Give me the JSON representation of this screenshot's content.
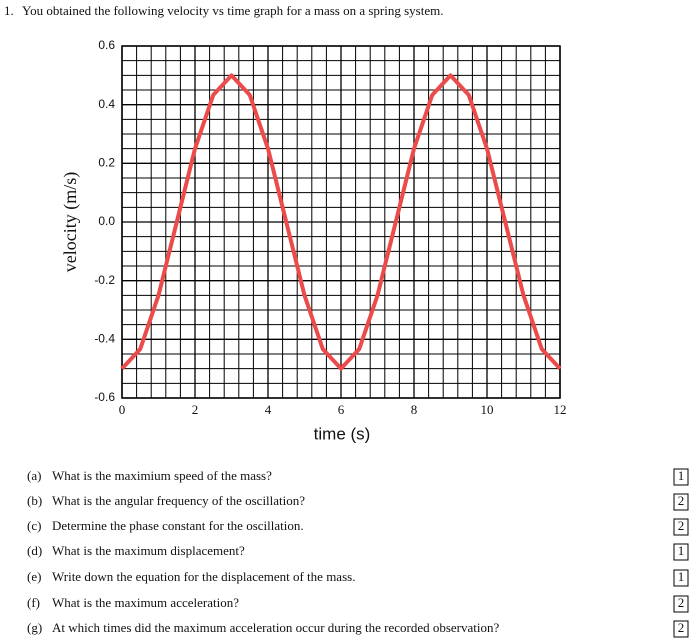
{
  "question": {
    "number": "1.",
    "text": "You obtained the following velocity vs time graph for a mass on a spring system."
  },
  "chart_data": {
    "type": "line",
    "xlabel": "time (s)",
    "ylabel": "velocity (m/s)",
    "x": [
      0,
      0.5,
      1,
      1.5,
      2,
      2.5,
      3,
      3.5,
      4,
      4.5,
      5,
      5.5,
      6,
      6.5,
      7,
      7.5,
      8,
      8.5,
      9,
      9.5,
      10,
      10.5,
      11,
      11.5,
      12
    ],
    "values": [
      -0.5,
      -0.433,
      -0.25,
      0,
      0.25,
      0.433,
      0.5,
      0.433,
      0.25,
      0,
      -0.25,
      -0.433,
      -0.5,
      -0.433,
      -0.25,
      0,
      0.25,
      0.433,
      0.5,
      0.433,
      0.25,
      0,
      -0.25,
      -0.433,
      -0.5
    ],
    "color": "#ec4b4b",
    "xlim": [
      0,
      12
    ],
    "xticks": [
      0,
      2,
      4,
      6,
      8,
      10,
      12
    ],
    "ylim": [
      -0.6,
      0.6
    ],
    "yticks": [
      -0.6,
      -0.4,
      -0.2,
      {
        "value": 0,
        "label": "0.0"
      },
      0.2,
      0.4,
      0.6
    ],
    "grid": true
  },
  "parts": [
    {
      "label": "(a)",
      "text": "What is the maximium speed of the mass?",
      "points": "1"
    },
    {
      "label": "(b)",
      "text": "What is the angular frequency of the oscillation?",
      "points": "2"
    },
    {
      "label": "(c)",
      "text": "Determine the phase constant for the oscillation.",
      "points": "2"
    },
    {
      "label": "(d)",
      "text": "What is the maximum displacement?",
      "points": "1"
    },
    {
      "label": "(e)",
      "text": "Write down the equation for the displacement of the mass.",
      "points": "1"
    },
    {
      "label": "(f)",
      "text": "What is the maximum acceleration?",
      "points": "2"
    },
    {
      "label": "(g)",
      "text": "At which times did the maximum acceleration occur during the recorded observation?",
      "points": "2"
    }
  ]
}
